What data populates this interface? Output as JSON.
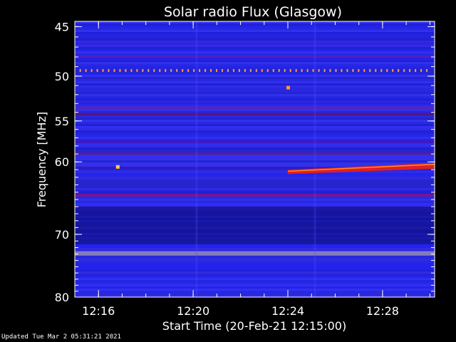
{
  "chart_data": {
    "type": "heatmap",
    "title": "Solar radio Flux (Glasgow)",
    "ylabel": "Frequency [MHz]",
    "xlabel": "Start Time (20-Feb-21 12:15:00)",
    "x_range_min": [
      0,
      15.2
    ],
    "y_range_mhz": [
      44.5,
      80.0
    ],
    "y_scale": "log",
    "x_ticks": [
      {
        "label": "12:16",
        "min": 1.0
      },
      {
        "label": "12:20",
        "min": 5.0
      },
      {
        "label": "12:24",
        "min": 9.0
      },
      {
        "label": "12:28",
        "min": 13.0
      }
    ],
    "y_ticks": [
      {
        "label": "45",
        "mhz": 45
      },
      {
        "label": "50",
        "mhz": 50
      },
      {
        "label": "55",
        "mhz": 55
      },
      {
        "label": "60",
        "mhz": 60
      },
      {
        "label": "70",
        "mhz": 70
      },
      {
        "label": "80",
        "mhz": 80
      }
    ],
    "bands": [
      {
        "mhz": 46.5,
        "color": "#3a16d8"
      },
      {
        "mhz": 48.0,
        "color": "#5a1aa8"
      },
      {
        "mhz": 53.5,
        "color": "#7a1470"
      },
      {
        "mhz": 54.2,
        "color": "#8a1040"
      },
      {
        "mhz": 57.5,
        "color": "#6a1488"
      },
      {
        "mhz": 59.0,
        "color": "#7a1050"
      },
      {
        "mhz": 60.8,
        "color": "#3a10a0"
      },
      {
        "mhz": 64.4,
        "color": "#e0102a"
      },
      {
        "mhz": 72.8,
        "color": "#fff2b0"
      }
    ],
    "events": [
      {
        "type": "dotted_line",
        "mhz": 49.4,
        "x_start": 0.2,
        "x_end": 15.0,
        "color": "#ff9a30"
      },
      {
        "type": "burst",
        "x": 9.0,
        "mhz": 51.2,
        "color": "#ff9a30"
      },
      {
        "type": "burst",
        "x": 1.8,
        "mhz": 60.6,
        "color": "#ffd040"
      },
      {
        "type": "drifting_band",
        "x_start": 9.0,
        "x_end": 15.2,
        "mhz_start": 61.3,
        "mhz_end": 60.5,
        "color": "#e02020"
      }
    ]
  },
  "footer": {
    "updated": "Updated Tue Mar  2 05:31:21 2021"
  }
}
